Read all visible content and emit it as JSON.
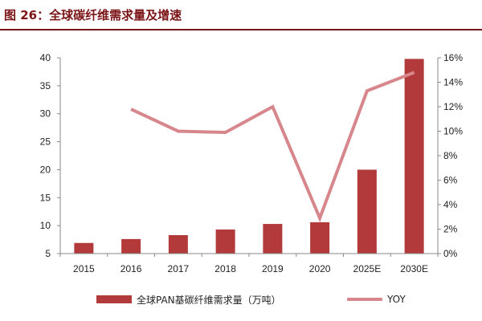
{
  "figure": {
    "title": "图 26：全球碳纤维需求量及增速"
  },
  "colors": {
    "bar": "#b23a3a",
    "line": "#d7868b",
    "title": "#7a1416",
    "axis": "#888888"
  },
  "legend": {
    "bar_label": "全球PAN基碳纤维需求量（万吨）",
    "line_label": "YOY"
  },
  "chart_data": {
    "type": "bar",
    "categories": [
      "2015",
      "2016",
      "2017",
      "2018",
      "2019",
      "2020",
      "2025E",
      "2030E"
    ],
    "series": [
      {
        "name": "全球PAN基碳纤维需求量（万吨）",
        "type": "bar",
        "axis": "left",
        "values": [
          6.9,
          7.6,
          8.3,
          9.3,
          10.3,
          10.6,
          20.0,
          39.8
        ]
      },
      {
        "name": "YOY",
        "type": "line",
        "axis": "right",
        "values": [
          null,
          0.118,
          0.1,
          0.099,
          0.12,
          0.029,
          0.133,
          0.148
        ]
      }
    ],
    "y_left": {
      "min": 5,
      "max": 40,
      "step": 5,
      "ticks": [
        "5",
        "10",
        "15",
        "20",
        "25",
        "30",
        "35",
        "40"
      ]
    },
    "y_right": {
      "min": 0,
      "max": 0.16,
      "step": 0.02,
      "ticks": [
        "0%",
        "2%",
        "4%",
        "6%",
        "8%",
        "10%",
        "12%",
        "14%",
        "16%"
      ]
    },
    "grid": false,
    "legend_position": "bottom"
  }
}
